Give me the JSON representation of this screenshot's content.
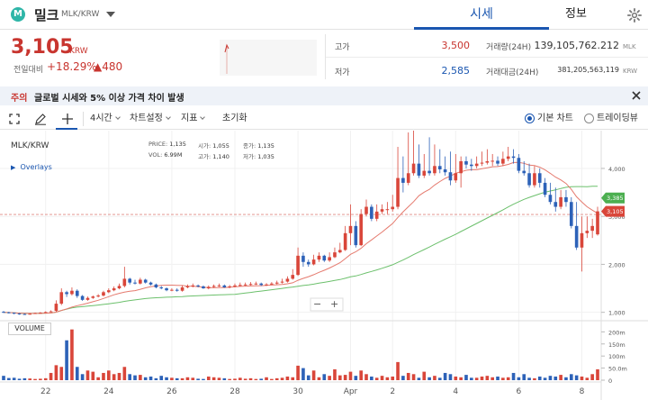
{
  "header": {
    "logo_letter": "M",
    "coin_name": "밀크",
    "pair": "MLK/KRW",
    "tabs": [
      {
        "label": "시세",
        "active": true
      },
      {
        "label": "정보",
        "active": false
      }
    ]
  },
  "summary": {
    "price": "3,105",
    "price_unit": "KRW",
    "prev_label": "전일대비",
    "change_rate": "+18.29%",
    "change_amount": "▲480",
    "high_label": "고가",
    "high_value": "3,500",
    "low_label": "저가",
    "low_value": "2,585",
    "volume_label": "거래량(24H)",
    "volume_value": "139,105,762.212",
    "volume_unit": "MLK",
    "amount_label": "거래대금(24H)",
    "amount_value": "381,205,563,119",
    "amount_unit": "KRW",
    "colors": {
      "up": "#c8352f",
      "down": "#1a56b0"
    }
  },
  "notice": {
    "tag": "주의",
    "text": "글로벌 시세와 5% 이상 가격 차이 발생"
  },
  "toolbar": {
    "interval": "4시간",
    "chart_settings": "차트설정",
    "indicators": "지표",
    "reset": "초기화",
    "basic_chart": "기본 차트",
    "tradingview": "트레이딩뷰"
  },
  "chart": {
    "title": "MLK/KRW",
    "overlays": "Overlays",
    "ohlc": {
      "price_label": "PRICE:",
      "price": "1,135",
      "open_label": "시가:",
      "open": "1,055",
      "close_label": "종가:",
      "close": "1,135",
      "vol_label": "VOL:",
      "vol": "6.99M",
      "high_label": "고가:",
      "high": "1,140",
      "low_label": "저가:",
      "low": "1,035"
    },
    "zoom_out": "−",
    "zoom_in": "+",
    "volume_label": "VOLUME"
  },
  "chart_data": {
    "type": "candlestick",
    "y_ticks": [
      "4,000",
      "3,000",
      "2,000",
      "1,000"
    ],
    "y_tick_values": [
      4000,
      3000,
      2000,
      1000
    ],
    "ylim": [
      900,
      4600
    ],
    "vol_ticks": [
      "200m",
      "150m",
      "100m",
      "50.0m",
      "0"
    ],
    "vol_tick_values": [
      200,
      150,
      100,
      50,
      0
    ],
    "vol_ylim": [
      0,
      220
    ],
    "x_ticks": [
      "22",
      "24",
      "26",
      "28",
      "30",
      "Apr",
      "2",
      "4",
      "6",
      "8"
    ],
    "x_tick_index": [
      8,
      20,
      32,
      44,
      56,
      66,
      74,
      86,
      98,
      110
    ],
    "price_tags": [
      {
        "label": "3,385",
        "value": 3385,
        "color": "#4caf50"
      },
      {
        "label": "3,105",
        "value": 3105,
        "color": "#d9463a"
      }
    ],
    "ref_line": 3040,
    "ma_colors": {
      "ma1": "#e57a6e",
      "ma2": "#6cc06c"
    },
    "close": [
      1000,
      990,
      975,
      965,
      960,
      970,
      985,
      990,
      1005,
      1020,
      1180,
      1420,
      1380,
      1450,
      1340,
      1260,
      1300,
      1330,
      1350,
      1420,
      1460,
      1500,
      1550,
      1700,
      1620,
      1600,
      1680,
      1620,
      1580,
      1520,
      1500,
      1460,
      1470,
      1450,
      1520,
      1540,
      1560,
      1540,
      1500,
      1530,
      1550,
      1560,
      1520,
      1540,
      1560,
      1570,
      1580,
      1590,
      1600,
      1570,
      1580,
      1600,
      1620,
      1640,
      1700,
      1780,
      2180,
      2050,
      2000,
      2100,
      2180,
      2080,
      2150,
      2250,
      2300,
      2650,
      2800,
      2400,
      3050,
      3200,
      2950,
      3100,
      3150,
      3150,
      3200,
      3800,
      3700,
      3900,
      4100,
      3850,
      3950,
      3900,
      4050,
      3980,
      3920,
      3750,
      3900,
      4150,
      4080,
      4050,
      4100,
      4120,
      4150,
      4160,
      4100,
      4200,
      4250,
      4220,
      3950,
      3900,
      3650,
      3900,
      3700,
      3450,
      3300,
      3200,
      3400,
      3300,
      2800,
      2350,
      2650,
      2700,
      2800,
      3105
    ],
    "open": [
      1010,
      1000,
      990,
      975,
      965,
      960,
      970,
      985,
      995,
      1010,
      1030,
      1180,
      1420,
      1380,
      1450,
      1340,
      1260,
      1300,
      1330,
      1350,
      1420,
      1460,
      1500,
      1550,
      1700,
      1620,
      1600,
      1680,
      1620,
      1580,
      1520,
      1500,
      1460,
      1470,
      1450,
      1520,
      1540,
      1560,
      1540,
      1500,
      1530,
      1550,
      1560,
      1520,
      1540,
      1560,
      1570,
      1580,
      1590,
      1600,
      1570,
      1580,
      1600,
      1620,
      1640,
      1700,
      1780,
      2180,
      2050,
      2000,
      2100,
      2180,
      2080,
      2150,
      2250,
      2300,
      2650,
      2800,
      2400,
      3050,
      3200,
      2950,
      3100,
      3150,
      3150,
      3200,
      3800,
      3700,
      3900,
      4100,
      3850,
      3950,
      3900,
      4050,
      3980,
      3920,
      3750,
      3900,
      4150,
      4080,
      4050,
      4100,
      4120,
      4150,
      4160,
      4100,
      4200,
      4250,
      4220,
      3950,
      3900,
      3650,
      3900,
      3700,
      3450,
      3300,
      3200,
      3400,
      3300,
      2800,
      2350,
      2650,
      2700,
      2625
    ],
    "high": [
      1030,
      1010,
      995,
      985,
      975,
      985,
      995,
      1005,
      1020,
      1040,
      1250,
      1500,
      1450,
      1520,
      1480,
      1360,
      1330,
      1350,
      1380,
      1450,
      1500,
      1540,
      1600,
      1950,
      1720,
      1680,
      1720,
      1700,
      1640,
      1600,
      1550,
      1520,
      1500,
      1500,
      1560,
      1580,
      1600,
      1580,
      1560,
      1560,
      1580,
      1600,
      1580,
      1570,
      1600,
      1620,
      1620,
      1630,
      1640,
      1620,
      1610,
      1630,
      1660,
      1700,
      1750,
      1900,
      2350,
      2250,
      2100,
      2200,
      2250,
      2200,
      2250,
      2350,
      2450,
      2800,
      3250,
      2900,
      3150,
      3350,
      3250,
      3250,
      3250,
      3300,
      3450,
      4450,
      4250,
      4750,
      4800,
      4500,
      4300,
      4650,
      4500,
      4400,
      4250,
      4350,
      4300,
      4250,
      4250,
      4200,
      4250,
      4350,
      4400,
      4300,
      4250,
      4350,
      4450,
      4400,
      4300,
      4150,
      4100,
      4050,
      4000,
      3800,
      3700,
      3600,
      3550,
      3550,
      3400,
      3300,
      3000,
      3000,
      2950,
      3200
    ],
    "low": [
      990,
      975,
      960,
      950,
      950,
      955,
      965,
      975,
      990,
      1000,
      1010,
      1150,
      1320,
      1350,
      1300,
      1240,
      1240,
      1280,
      1310,
      1330,
      1400,
      1440,
      1480,
      1520,
      1580,
      1580,
      1580,
      1600,
      1560,
      1500,
      1480,
      1440,
      1440,
      1430,
      1430,
      1500,
      1520,
      1520,
      1490,
      1480,
      1510,
      1530,
      1510,
      1500,
      1520,
      1540,
      1550,
      1560,
      1570,
      1550,
      1550,
      1570,
      1580,
      1600,
      1620,
      1680,
      1760,
      1950,
      1950,
      1980,
      2050,
      2050,
      2050,
      2130,
      2230,
      2280,
      2400,
      2350,
      2380,
      3000,
      2900,
      2900,
      3050,
      3050,
      3100,
      3150,
      3500,
      3650,
      3850,
      3800,
      3800,
      3850,
      3850,
      3900,
      3850,
      3650,
      3700,
      3600,
      4000,
      3950,
      4000,
      4050,
      4080,
      4050,
      4050,
      4050,
      4150,
      4100,
      3900,
      3850,
      3600,
      3600,
      3600,
      3400,
      3250,
      3100,
      3150,
      3200,
      2750,
      2300,
      1850,
      2550,
      2550,
      2600
    ],
    "volume": [
      18,
      9,
      10,
      6,
      8,
      7,
      5,
      6,
      8,
      30,
      62,
      55,
      165,
      210,
      55,
      25,
      40,
      35,
      12,
      30,
      40,
      25,
      30,
      55,
      25,
      20,
      22,
      12,
      15,
      8,
      18,
      12,
      10,
      8,
      8,
      12,
      10,
      6,
      5,
      15,
      12,
      10,
      8,
      5,
      6,
      10,
      6,
      8,
      5,
      6,
      12,
      5,
      8,
      10,
      15,
      12,
      60,
      50,
      20,
      40,
      12,
      25,
      18,
      45,
      20,
      22,
      35,
      18,
      40,
      25,
      15,
      10,
      18,
      12,
      15,
      75,
      18,
      30,
      25,
      10,
      35,
      12,
      18,
      10,
      30,
      25,
      15,
      12,
      22,
      10,
      10,
      15,
      18,
      12,
      15,
      10,
      12,
      30,
      12,
      25,
      10,
      8,
      15,
      10,
      18,
      15,
      22,
      12,
      25,
      20,
      15,
      10,
      25,
      45
    ]
  }
}
